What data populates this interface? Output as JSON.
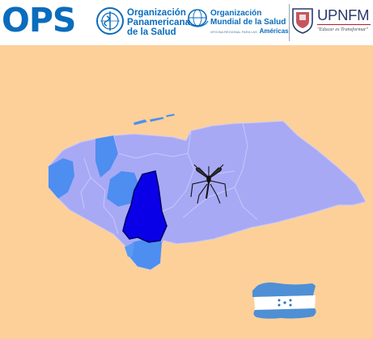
{
  "header": {
    "ops_logo_text": "OPS",
    "paho": {
      "line1": "Organización",
      "line2": "Panamericana",
      "line3": "de la Salud"
    },
    "who": {
      "line1": "Organización",
      "line2": "Mundial de la Salud",
      "region_small": "OFICINA REGIONAL PARA LAS",
      "region": "Américas"
    },
    "upnfm": {
      "title": "UPNFM",
      "motto": "\"Educar es Transformar\""
    }
  },
  "map": {
    "country": "Honduras",
    "highlight_color": "#0a00e8",
    "medium_color": "#4d8ef0",
    "light_color": "#a8a9f5",
    "mosquito_icon": "mosquito-icon"
  },
  "flag": {
    "name": "Honduras",
    "stripe_color": "#4e8fd6",
    "stars_color": "#2a6fc0"
  },
  "colors": {
    "background": "#fdd09a",
    "brand_blue": "#0a6cbd",
    "upnfm_red": "#b01c2a"
  }
}
